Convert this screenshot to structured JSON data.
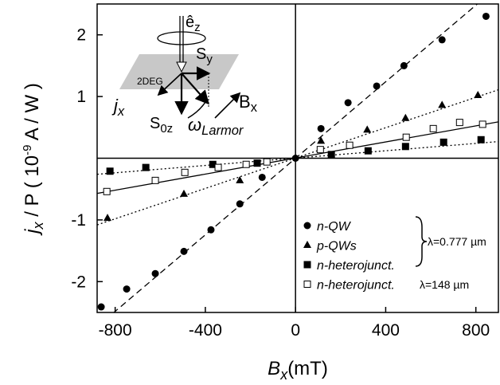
{
  "chart_data": {
    "type": "scatter",
    "x_label": {
      "main": "B",
      "sub": "x",
      "rest": "(mT)"
    },
    "y_label": {
      "main": "j",
      "sub": "x",
      "mid": " / P ( 10",
      "sup": "-9",
      "rest": " A / W )"
    },
    "xlim": [
      -880,
      900
    ],
    "ylim": [
      -2.5,
      2.5
    ],
    "xticks": [
      -800,
      -400,
      0,
      400,
      800
    ],
    "yticks": [
      -2,
      -1,
      1,
      2
    ],
    "series": [
      {
        "name": "n-QW",
        "marker": "circle",
        "color": "#000000",
        "x": [
          -862,
          -749,
          -622,
          -495,
          -375,
          -247,
          -148,
          0,
          113,
          233,
          360,
          481,
          650,
          845
        ],
        "values": [
          -2.41,
          -2.12,
          -1.87,
          -1.51,
          -1.16,
          -0.74,
          -0.31,
          0,
          0.48,
          0.9,
          1.17,
          1.5,
          1.92,
          2.3
        ]
      },
      {
        "name": "p-QWs",
        "marker": "triangle",
        "color": "#000000",
        "x": [
          -834,
          -495,
          -247,
          113,
          318,
          488,
          650,
          809
        ],
        "values": [
          -0.97,
          -0.58,
          -0.36,
          0.28,
          0.46,
          0.65,
          0.86,
          1.02
        ]
      },
      {
        "name": "n-heterojunct.",
        "marker": "square",
        "color": "#000000",
        "x": [
          -823,
          -664,
          -367,
          -170,
          159,
          322,
          488,
          657,
          823
        ],
        "values": [
          -0.21,
          -0.15,
          -0.1,
          -0.08,
          0.06,
          0.12,
          0.19,
          0.26,
          0.3
        ]
      },
      {
        "name": "n-heterojunct.",
        "marker": "open-square",
        "color": "#000000",
        "x": [
          -837,
          -622,
          -491,
          -343,
          -219,
          -127,
          110,
          240,
          491,
          611,
          728,
          830
        ],
        "values": [
          -0.54,
          -0.36,
          -0.23,
          -0.15,
          -0.1,
          -0.06,
          0.14,
          0.21,
          0.34,
          0.48,
          0.58,
          0.55
        ]
      }
    ],
    "fits": [
      {
        "style": "dashed",
        "x": [
          -880,
          900
        ],
        "values": [
          -2.73,
          2.79
        ]
      },
      {
        "style": "dotted",
        "x": [
          -880,
          900
        ],
        "values": [
          -1.08,
          1.11
        ]
      },
      {
        "style": "dotted",
        "x": [
          -880,
          900
        ],
        "values": [
          -0.26,
          0.27
        ]
      },
      {
        "style": "solid",
        "x": [
          -880,
          900
        ],
        "values": [
          -0.57,
          0.59
        ]
      }
    ],
    "annotations": [
      "λ=0.777 µm",
      "λ=148 µm"
    ],
    "inset": {
      "ez": "ê",
      "ez_sub": "z",
      "sy": "S",
      "sy_sub": "y",
      "deg": "2DEG",
      "jx": "j",
      "jx_sub": "x",
      "bx": "B",
      "bx_sub": "x",
      "s0z": "S",
      "s0z_sub": "0z",
      "omega": "ω",
      "omega_sub": "Larmor"
    }
  }
}
